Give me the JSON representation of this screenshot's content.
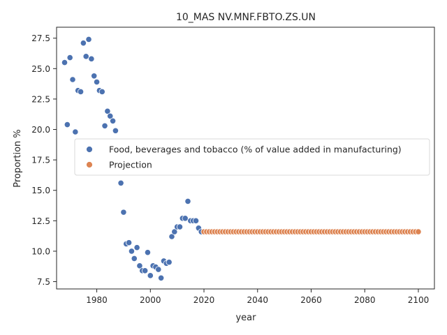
{
  "chart_data": {
    "type": "scatter",
    "title": "10_MAS NV.MNF.FBTO.ZS.UN",
    "xlabel": "year",
    "ylabel": "Proportion %",
    "xlim": [
      1965,
      2106
    ],
    "ylim": [
      6.9,
      28.4
    ],
    "xticks": [
      1980,
      2000,
      2020,
      2040,
      2060,
      2080,
      2100
    ],
    "yticks": [
      7.5,
      10.0,
      12.5,
      15.0,
      17.5,
      20.0,
      22.5,
      25.0,
      27.5
    ],
    "xtick_labels": [
      "1980",
      "2000",
      "2020",
      "2040",
      "2060",
      "2080",
      "2100"
    ],
    "ytick_labels": [
      "7.5",
      "10.0",
      "12.5",
      "15.0",
      "17.5",
      "20.0",
      "22.5",
      "25.0",
      "27.5"
    ],
    "grid": false,
    "legend_position": "center-right",
    "series": [
      {
        "name": "Food, beverages and tobacco (% of value added in manufacturing)",
        "color": "#4c72b0",
        "x": [
          1968,
          1969,
          1970,
          1971,
          1972,
          1973,
          1974,
          1975,
          1976,
          1977,
          1978,
          1979,
          1980,
          1981,
          1982,
          1983,
          1984,
          1985,
          1986,
          1987,
          1989,
          1990,
          1991,
          1992,
          1993,
          1994,
          1995,
          1996,
          1997,
          1998,
          1999,
          2000,
          2001,
          2002,
          2003,
          2004,
          2005,
          2006,
          2007,
          2008,
          2009,
          2010,
          2011,
          2012,
          2013,
          2014,
          2015,
          2016,
          2017,
          2018,
          2019
        ],
        "y": [
          25.5,
          20.4,
          25.9,
          24.1,
          19.8,
          23.2,
          23.1,
          27.1,
          26.0,
          27.4,
          25.8,
          24.4,
          23.9,
          23.2,
          23.1,
          20.3,
          21.5,
          21.1,
          20.7,
          19.9,
          15.6,
          13.2,
          10.6,
          10.7,
          10.0,
          9.4,
          10.3,
          8.8,
          8.4,
          8.4,
          9.9,
          8.0,
          8.8,
          8.7,
          8.5,
          7.8,
          9.2,
          9.0,
          9.1,
          11.2,
          11.6,
          12.0,
          12.0,
          12.7,
          12.7,
          14.1,
          12.5,
          12.5,
          12.5,
          11.9,
          11.6
        ]
      },
      {
        "name": "Projection",
        "color": "#dd8452",
        "x_start": 2020,
        "x_end": 2100,
        "value": 11.6
      }
    ]
  }
}
